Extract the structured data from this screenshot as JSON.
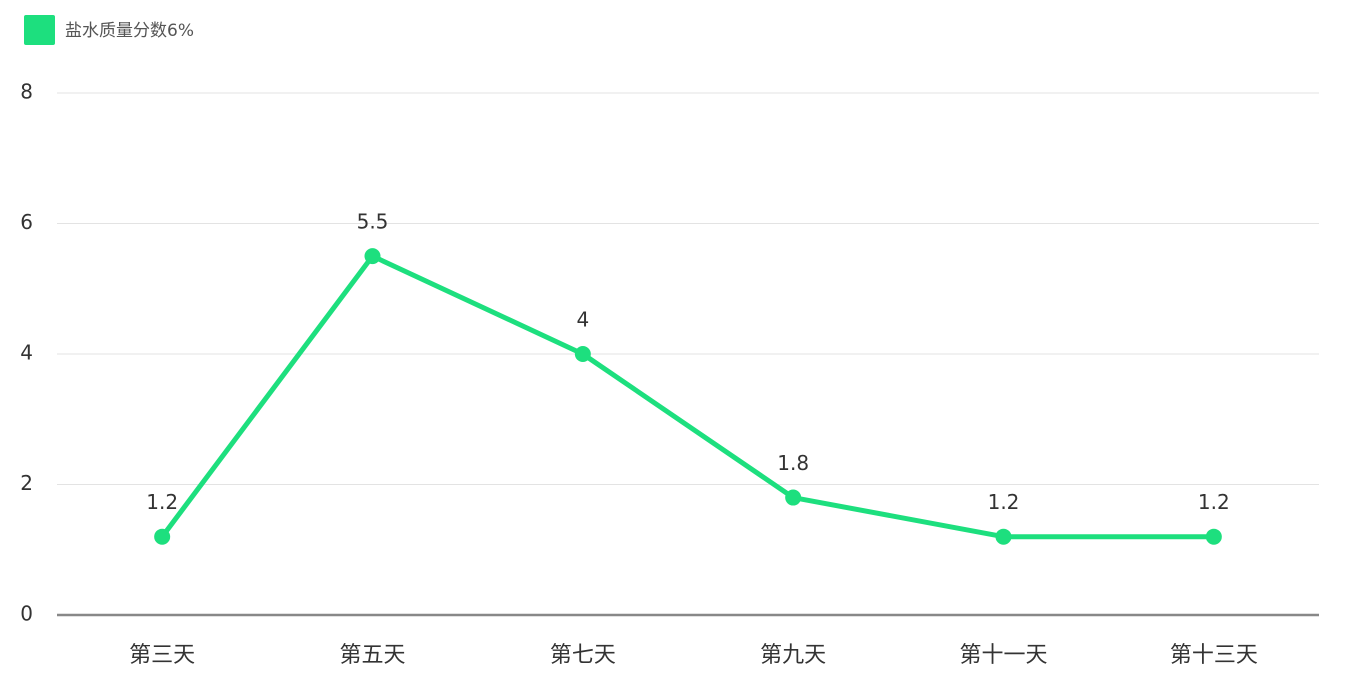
{
  "chart_data": {
    "type": "line",
    "categories": [
      "第三天",
      "第五天",
      "第七天",
      "第九天",
      "第十一天",
      "第十三天"
    ],
    "series": [
      {
        "name": "盐水质量分数6%",
        "color": "#1ddf7e",
        "values": [
          1.2,
          5.5,
          4,
          1.8,
          1.2,
          1.2
        ]
      }
    ],
    "ylim": [
      0,
      8
    ],
    "yticks": [
      0,
      2,
      4,
      6,
      8
    ],
    "grid": true,
    "legend": "top-left"
  }
}
